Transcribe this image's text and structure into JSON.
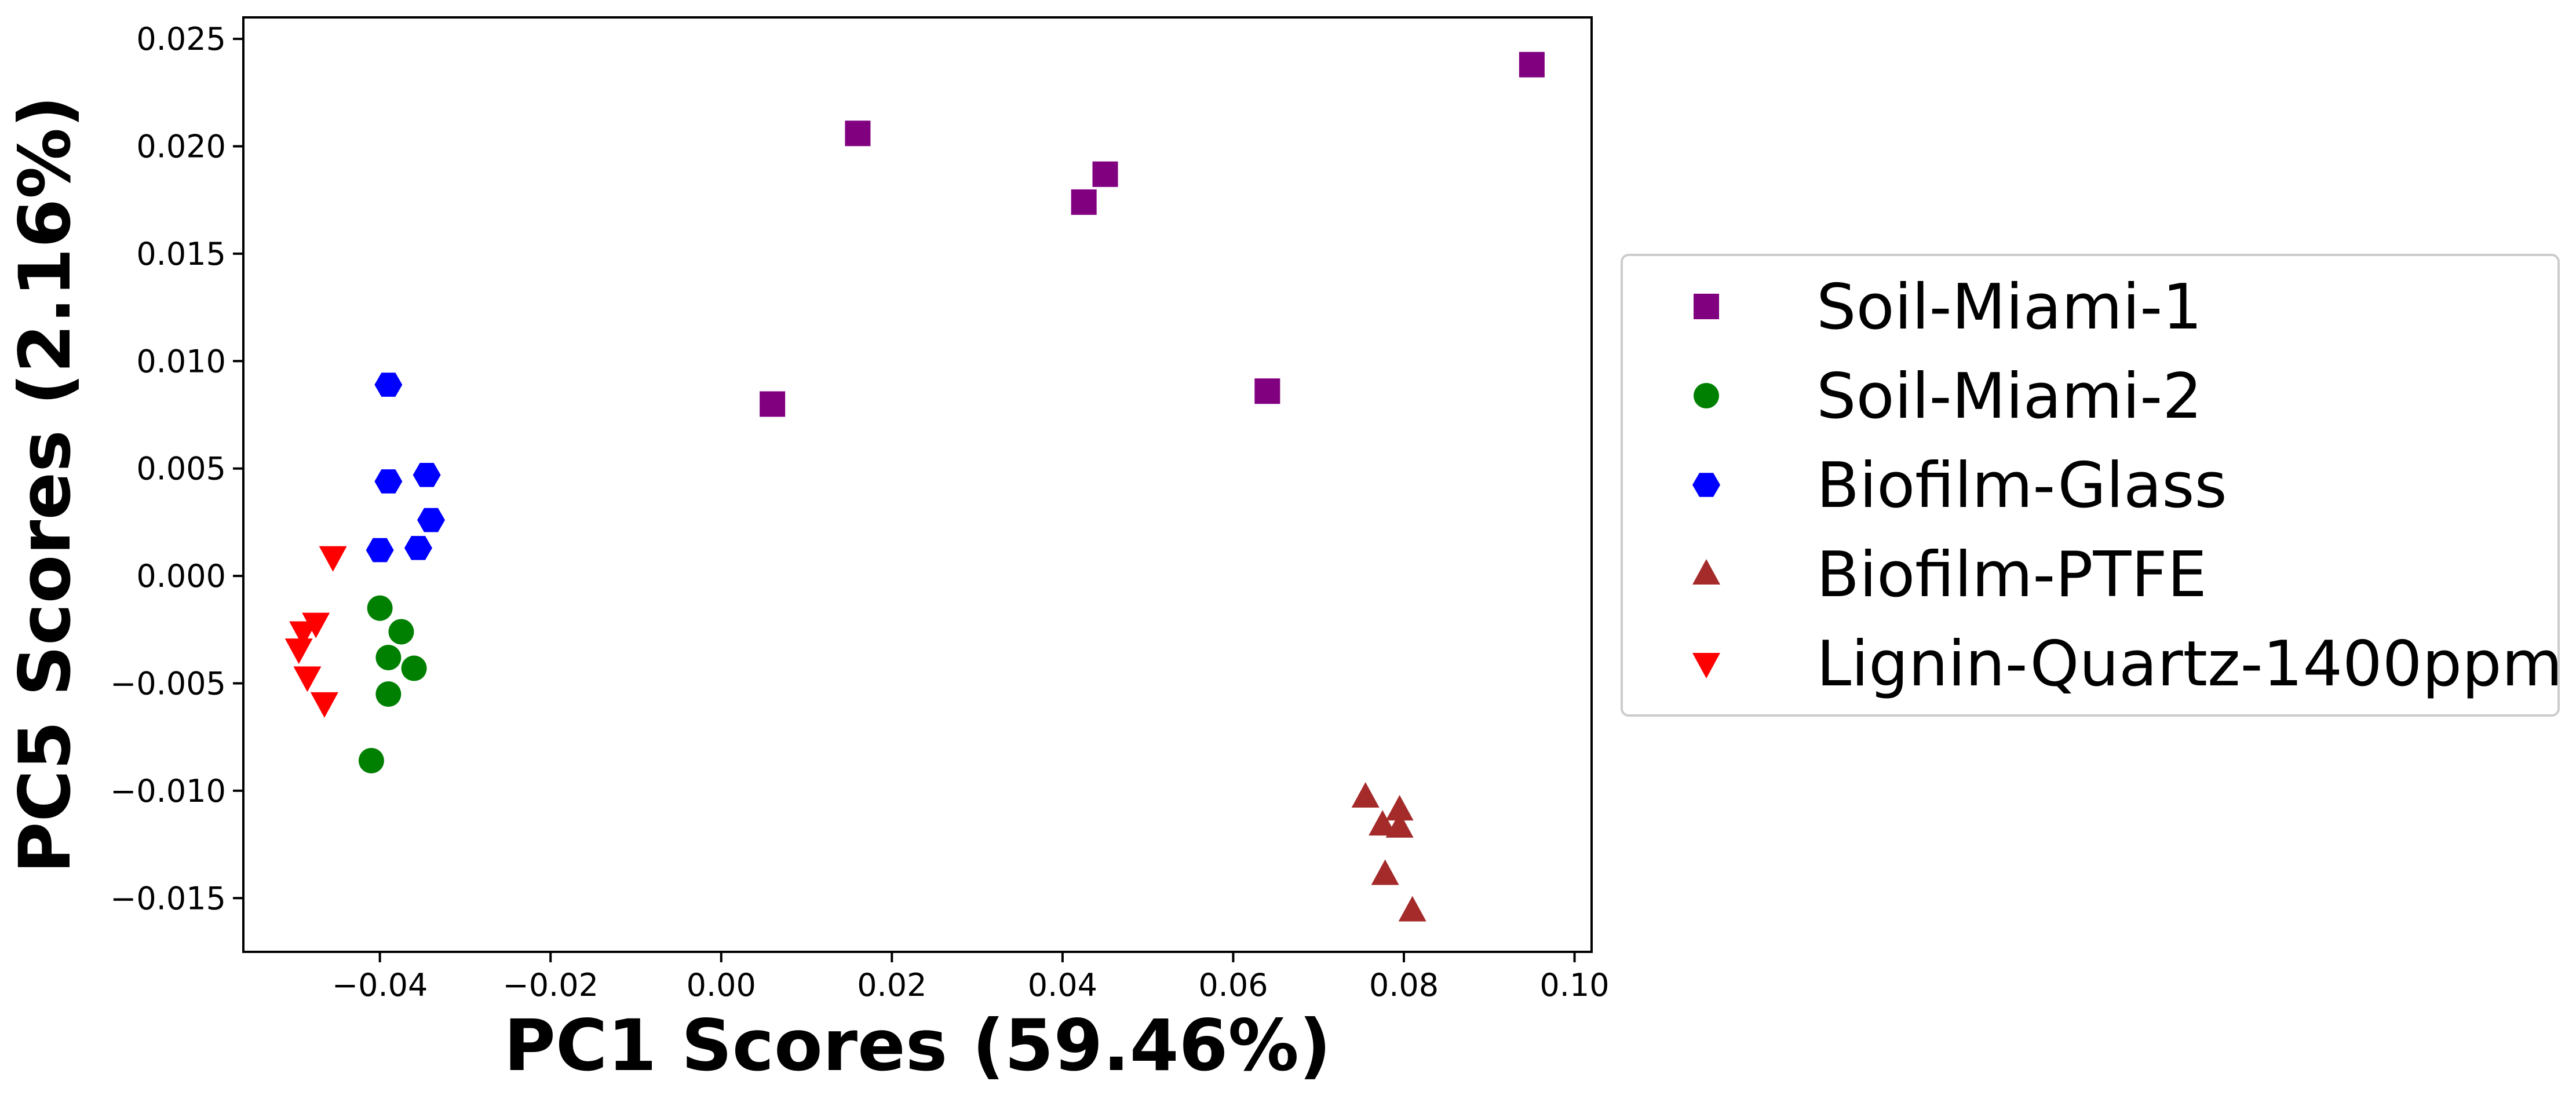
{
  "chart_data": {
    "type": "scatter",
    "xlabel": "PC1 Scores (59.46%)",
    "ylabel": "PC5 Scores (2.16%)",
    "xlim": [
      -0.056,
      0.102
    ],
    "ylim": [
      -0.0175,
      0.026
    ],
    "x_ticks": [
      -0.04,
      -0.02,
      0.0,
      0.02,
      0.04,
      0.06,
      0.08,
      0.1
    ],
    "x_tick_labels": [
      "−0.04",
      "−0.02",
      "0.00",
      "0.02",
      "0.04",
      "0.06",
      "0.08",
      "0.10"
    ],
    "y_ticks": [
      -0.015,
      -0.01,
      -0.005,
      0.0,
      0.005,
      0.01,
      0.015,
      0.02,
      0.025
    ],
    "y_tick_labels": [
      "−0.015",
      "−0.010",
      "−0.005",
      "0.000",
      "0.005",
      "0.010",
      "0.015",
      "0.020",
      "0.025"
    ],
    "grid": false,
    "legend_position": "outside-right",
    "series": [
      {
        "name": "Soil-Miami-1",
        "marker": "square",
        "color": "#800080",
        "points": [
          [
            0.006,
            0.008
          ],
          [
            0.016,
            0.0206
          ],
          [
            0.0425,
            0.0174
          ],
          [
            0.045,
            0.0187
          ],
          [
            0.064,
            0.0086
          ],
          [
            0.095,
            0.0238
          ]
        ]
      },
      {
        "name": "Soil-Miami-2",
        "marker": "circle",
        "color": "#008000",
        "points": [
          [
            -0.04,
            -0.0015
          ],
          [
            -0.0375,
            -0.0026
          ],
          [
            -0.039,
            -0.0038
          ],
          [
            -0.036,
            -0.0043
          ],
          [
            -0.039,
            -0.0055
          ],
          [
            -0.041,
            -0.0086
          ]
        ]
      },
      {
        "name": "Biofilm-Glass",
        "marker": "hexagon",
        "color": "#0000ff",
        "points": [
          [
            -0.039,
            0.0089
          ],
          [
            -0.039,
            0.0044
          ],
          [
            -0.0345,
            0.0047
          ],
          [
            -0.034,
            0.0026
          ],
          [
            -0.0355,
            0.0013
          ],
          [
            -0.04,
            0.0012
          ]
        ]
      },
      {
        "name": "Biofilm-PTFE",
        "marker": "triangle-up",
        "color": "#a52a2a",
        "points": [
          [
            0.0755,
            -0.0103
          ],
          [
            0.0795,
            -0.0109
          ],
          [
            0.0775,
            -0.0116
          ],
          [
            0.0795,
            -0.0117
          ],
          [
            0.0778,
            -0.0139
          ],
          [
            0.081,
            -0.0156
          ]
        ]
      },
      {
        "name": "Lignin-Quartz-1400ppm",
        "marker": "triangle-down",
        "color": "#ff0000",
        "points": [
          [
            -0.0455,
            0.0009
          ],
          [
            -0.0475,
            -0.0022
          ],
          [
            -0.049,
            -0.0026
          ],
          [
            -0.0495,
            -0.0034
          ],
          [
            -0.0485,
            -0.0047
          ],
          [
            -0.0465,
            -0.0059
          ]
        ]
      }
    ]
  }
}
